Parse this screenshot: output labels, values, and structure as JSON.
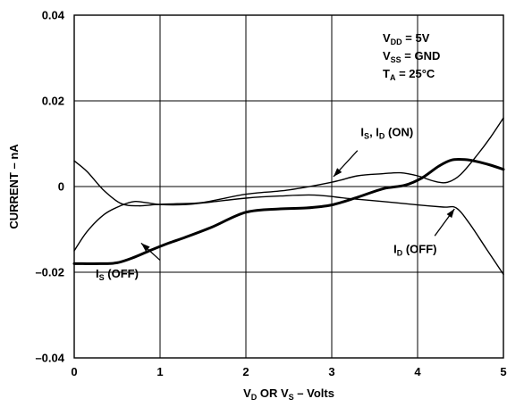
{
  "chart_data": {
    "type": "line",
    "title": "",
    "xlabel": {
      "main": "V",
      "sub1": "D",
      "mid": " OR V",
      "sub2": "S",
      "tail": " – Volts"
    },
    "ylabel": "CURRENT – nA",
    "xlim": [
      0,
      5
    ],
    "ylim": [
      -0.04,
      0.04
    ],
    "xticks": [
      0,
      1,
      2,
      3,
      4,
      5
    ],
    "yticks": [
      0.04,
      0.02,
      0,
      -0.02,
      -0.04
    ],
    "xtick_labels": [
      "0",
      "1",
      "2",
      "3",
      "4",
      "5"
    ],
    "ytick_labels": [
      "0.04",
      "0.02",
      "0",
      "–0.02",
      "–0.04"
    ],
    "grid": true,
    "conditions": [
      {
        "main": "V",
        "sub": "DD",
        "rest": " = 5V"
      },
      {
        "main": "V",
        "sub": "SS",
        "rest": " = GND"
      },
      {
        "main": "T",
        "sub": "A",
        "rest": " = 25°C"
      }
    ],
    "series": [
      {
        "name": "I_S, I_D (ON)",
        "thick": true,
        "x": [
          0,
          0.1,
          0.3,
          0.5,
          0.7,
          0.9,
          1.1,
          1.3,
          1.6,
          2.0,
          2.4,
          2.7,
          3.0,
          3.3,
          3.6,
          3.85,
          4.05,
          4.25,
          4.4,
          4.55,
          4.7,
          4.85,
          5.0
        ],
        "y": [
          -0.018,
          -0.018,
          -0.018,
          -0.0178,
          -0.0165,
          -0.0148,
          -0.0132,
          -0.0118,
          -0.0095,
          -0.006,
          -0.0052,
          -0.005,
          -0.0043,
          -0.0025,
          -0.0005,
          0.0003,
          0.002,
          0.0048,
          0.0062,
          0.0063,
          0.0058,
          0.005,
          0.004
        ]
      },
      {
        "name": "I_S (OFF)",
        "thick": false,
        "x": [
          0,
          0.15,
          0.35,
          0.55,
          0.7,
          0.85,
          1.0,
          1.3,
          1.6,
          2.0,
          2.4,
          2.8,
          3.2,
          3.6,
          4.0,
          4.3,
          4.45,
          4.6,
          4.8,
          5.0
        ],
        "y": [
          -0.015,
          -0.0105,
          -0.0065,
          -0.0044,
          -0.0035,
          -0.0038,
          -0.0042,
          -0.0042,
          -0.0036,
          -0.0027,
          -0.0022,
          -0.002,
          -0.0028,
          -0.0035,
          -0.0043,
          -0.0048,
          -0.005,
          -0.0085,
          -0.0145,
          -0.0205
        ]
      },
      {
        "name": "I_D (OFF)",
        "thick": false,
        "x": [
          0,
          0.15,
          0.35,
          0.55,
          0.75,
          0.95,
          1.2,
          1.5,
          2.0,
          2.5,
          3.0,
          3.3,
          3.6,
          3.8,
          4.0,
          4.2,
          4.35,
          4.5,
          4.7,
          4.85,
          5.0
        ],
        "y": [
          0.006,
          0.0035,
          -0.001,
          -0.004,
          -0.0045,
          -0.0042,
          -0.004,
          -0.0037,
          -0.0018,
          -0.0008,
          0.001,
          0.0025,
          0.003,
          0.0032,
          0.0025,
          0.0012,
          0.001,
          0.0028,
          0.0075,
          0.0115,
          0.016
        ]
      }
    ],
    "annotations": [
      {
        "target": "I_S, I_D (ON)",
        "parts": [
          [
            "I",
            ""
          ],
          [
            "S",
            "sub"
          ],
          [
            ", I",
            ""
          ],
          [
            "D",
            "sub"
          ],
          [
            " (ON)",
            ""
          ]
        ],
        "x": 3.95,
        "y": 0.0118,
        "anchor": "end",
        "arrow_from": [
          3.3,
          0.0084
        ],
        "arrow_to": [
          3.02,
          0.0023
        ]
      },
      {
        "target": "I_S (OFF)",
        "parts": [
          [
            "I",
            ""
          ],
          [
            "S",
            "sub"
          ],
          [
            " (OFF)",
            ""
          ]
        ],
        "x": 0.25,
        "y": -0.0212,
        "anchor": "start",
        "arrow_from": [
          1.0,
          -0.0172
        ],
        "arrow_to": [
          0.78,
          -0.0132
        ]
      },
      {
        "target": "I_D (OFF)",
        "parts": [
          [
            "I",
            ""
          ],
          [
            "D",
            "sub"
          ],
          [
            " (OFF)",
            ""
          ]
        ],
        "x": 3.72,
        "y": -0.0155,
        "anchor": "start",
        "arrow_from": [
          4.2,
          -0.0115
        ],
        "arrow_to": [
          4.43,
          -0.0052
        ]
      }
    ]
  }
}
